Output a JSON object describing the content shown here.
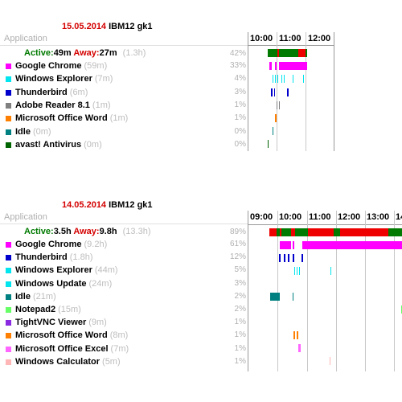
{
  "reports": [
    {
      "date": "15.05.2014",
      "host": "IBM12 gk1",
      "application_label": "Application",
      "summary": {
        "active_label": "Active:",
        "active": "49m",
        "away_label": "Away:",
        "away": "27m",
        "total": "(1.3h)",
        "pct": "42%"
      },
      "hours": [
        "10:00",
        "11:00",
        "12:00"
      ],
      "apps": [
        {
          "name": "Google Chrome",
          "duration": "(59m)",
          "pct": "33%",
          "color": "#ff00ff"
        },
        {
          "name": "Windows Explorer",
          "duration": "(7m)",
          "pct": "4%",
          "color": "#00e5ee"
        },
        {
          "name": "Thunderbird",
          "duration": "(6m)",
          "pct": "3%",
          "color": "#0000cc"
        },
        {
          "name": "Adobe Reader 8.1",
          "duration": "(1m)",
          "pct": "1%",
          "color": "#808080"
        },
        {
          "name": "Microsoft Office Word",
          "duration": "(1m)",
          "pct": "1%",
          "color": "#ff8000"
        },
        {
          "name": "Idle",
          "duration": "(0m)",
          "pct": "0%",
          "color": "#008080"
        },
        {
          "name": "avast! Antivirus",
          "duration": "(0m)",
          "pct": "0%",
          "color": "#006400"
        }
      ],
      "colors": {
        "active": "#007a00",
        "away": "#ee0000"
      }
    },
    {
      "date": "14.05.2014",
      "host": "IBM12 gk1",
      "application_label": "Application",
      "summary": {
        "active_label": "Active:",
        "active": "3.5h",
        "away_label": "Away:",
        "away": "9.8h",
        "total": "(13.3h)",
        "pct": "89%"
      },
      "hours": [
        "09:00",
        "10:00",
        "11:00",
        "12:00",
        "13:00",
        "14"
      ],
      "apps": [
        {
          "name": "Google Chrome",
          "duration": "(9.2h)",
          "pct": "61%",
          "color": "#ff00ff"
        },
        {
          "name": "Thunderbird",
          "duration": "(1.8h)",
          "pct": "12%",
          "color": "#0000cc"
        },
        {
          "name": "Windows Explorer",
          "duration": "(44m)",
          "pct": "5%",
          "color": "#00e5ee"
        },
        {
          "name": "Windows Update",
          "duration": "(24m)",
          "pct": "3%",
          "color": "#00e5ee"
        },
        {
          "name": "Idle",
          "duration": "(21m)",
          "pct": "2%",
          "color": "#008080"
        },
        {
          "name": "Notepad2",
          "duration": "(15m)",
          "pct": "2%",
          "color": "#66ff66"
        },
        {
          "name": "TightVNC Viewer",
          "duration": "(9m)",
          "pct": "1%",
          "color": "#8a2be2"
        },
        {
          "name": "Microsoft Office Word",
          "duration": "(8m)",
          "pct": "1%",
          "color": "#ff8000"
        },
        {
          "name": "Microsoft Office Excel",
          "duration": "(7m)",
          "pct": "1%",
          "color": "#ff66ff"
        },
        {
          "name": "Windows Calculator",
          "duration": "(5m)",
          "pct": "1%",
          "color": "#ffb6b6"
        }
      ],
      "colors": {
        "active": "#007a00",
        "away": "#ee0000"
      }
    }
  ]
}
